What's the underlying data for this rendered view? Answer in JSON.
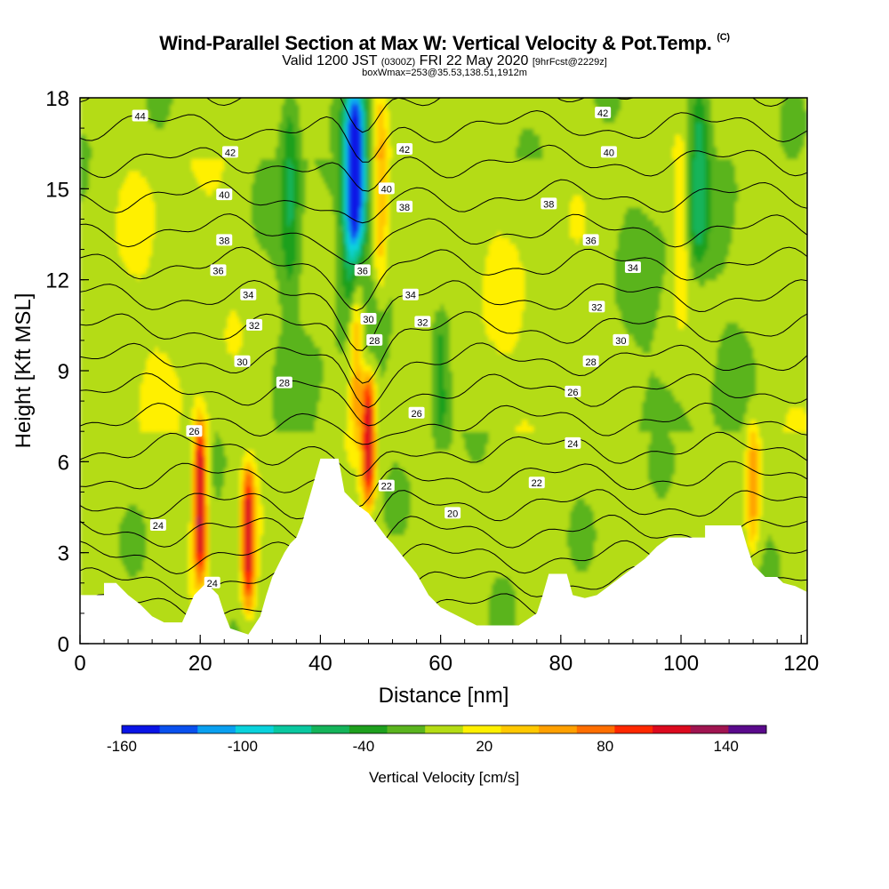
{
  "title": {
    "main": "Wind-Parallel Section at Max W: Vertical Velocity & Pot.Temp.",
    "copyright": "(C)",
    "valid_prefix": "Valid 1200 JST",
    "valid_utc": "(0300Z)",
    "valid_date": "FRI 22 May 2020",
    "forecast_tag": "[9hrFcst@2229z]",
    "box_info": "boxWmax=253@35.53,138.51,1912m"
  },
  "chart_data": {
    "type": "heatmap",
    "xlabel": "Distance [nm]",
    "ylabel": "Height [Kft MSL]",
    "xlim": [
      0,
      121
    ],
    "ylim": [
      0,
      18
    ],
    "x_ticks": [
      0,
      20,
      40,
      60,
      80,
      100,
      120
    ],
    "y_ticks": [
      0,
      3,
      6,
      9,
      12,
      15,
      18
    ],
    "colorbar": {
      "title": "Vertical Velocity [cm/s]",
      "tick_labels": [
        -160,
        -100,
        -40,
        20,
        80,
        140
      ],
      "levels": [
        -160,
        -140,
        -120,
        -100,
        -80,
        -60,
        -40,
        -20,
        0,
        20,
        40,
        60,
        80,
        100,
        120,
        140,
        160
      ],
      "colors": [
        "#0a14e6",
        "#0a50ee",
        "#0aa0f0",
        "#0ad2dc",
        "#0ac8a0",
        "#14b45a",
        "#1ea01e",
        "#5ab41e",
        "#b4dc14",
        "#fff000",
        "#ffc800",
        "#ffa000",
        "#ff6e00",
        "#ff2800",
        "#dc0a1e",
        "#a01450",
        "#5a0a8c"
      ]
    },
    "theta_contour_labels": [
      20,
      22,
      24,
      26,
      28,
      30,
      32,
      34,
      36,
      38,
      40,
      42,
      44
    ],
    "theta_labels_shown": [
      {
        "text": "44",
        "x": 10,
        "y": 17.4
      },
      {
        "text": "42",
        "x": 25,
        "y": 16.2
      },
      {
        "text": "40",
        "x": 24,
        "y": 14.8
      },
      {
        "text": "38",
        "x": 24,
        "y": 13.3
      },
      {
        "text": "36",
        "x": 23,
        "y": 12.3
      },
      {
        "text": "34",
        "x": 28,
        "y": 11.5
      },
      {
        "text": "32",
        "x": 29,
        "y": 10.5
      },
      {
        "text": "30",
        "x": 27,
        "y": 9.3
      },
      {
        "text": "28",
        "x": 34,
        "y": 8.6
      },
      {
        "text": "26",
        "x": 19,
        "y": 7.0
      },
      {
        "text": "24",
        "x": 13,
        "y": 3.9
      },
      {
        "text": "24",
        "x": 22,
        "y": 2.0
      },
      {
        "text": "42",
        "x": 54,
        "y": 16.3
      },
      {
        "text": "40",
        "x": 51,
        "y": 15.0
      },
      {
        "text": "38",
        "x": 54,
        "y": 14.4
      },
      {
        "text": "36",
        "x": 47,
        "y": 12.3
      },
      {
        "text": "34",
        "x": 55,
        "y": 11.5
      },
      {
        "text": "32",
        "x": 57,
        "y": 10.6
      },
      {
        "text": "30",
        "x": 48,
        "y": 10.7
      },
      {
        "text": "28",
        "x": 49,
        "y": 10.0
      },
      {
        "text": "26",
        "x": 56,
        "y": 7.6
      },
      {
        "text": "22",
        "x": 51,
        "y": 5.2
      },
      {
        "text": "20",
        "x": 62,
        "y": 4.3
      },
      {
        "text": "42",
        "x": 87,
        "y": 17.5
      },
      {
        "text": "40",
        "x": 88,
        "y": 16.2
      },
      {
        "text": "38",
        "x": 78,
        "y": 14.5
      },
      {
        "text": "36",
        "x": 85,
        "y": 13.3
      },
      {
        "text": "34",
        "x": 92,
        "y": 12.4
      },
      {
        "text": "32",
        "x": 86,
        "y": 11.1
      },
      {
        "text": "30",
        "x": 90,
        "y": 10.0
      },
      {
        "text": "28",
        "x": 85,
        "y": 9.3
      },
      {
        "text": "26",
        "x": 82,
        "y": 8.3
      },
      {
        "text": "24",
        "x": 82,
        "y": 6.6
      },
      {
        "text": "22",
        "x": 76,
        "y": 5.3
      }
    ],
    "terrain_height_kft": [
      {
        "x": 0,
        "y": 1.6
      },
      {
        "x": 4,
        "y": 1.6
      },
      {
        "x": 4,
        "y": 2.0
      },
      {
        "x": 6,
        "y": 2.0
      },
      {
        "x": 8,
        "y": 1.6
      },
      {
        "x": 10,
        "y": 1.3
      },
      {
        "x": 12,
        "y": 0.9
      },
      {
        "x": 14,
        "y": 0.7
      },
      {
        "x": 17,
        "y": 0.7
      },
      {
        "x": 19,
        "y": 1.6
      },
      {
        "x": 21,
        "y": 2.0
      },
      {
        "x": 23,
        "y": 1.6
      },
      {
        "x": 24,
        "y": 1.0
      },
      {
        "x": 25,
        "y": 0.5
      },
      {
        "x": 28,
        "y": 0.3
      },
      {
        "x": 30,
        "y": 0.9
      },
      {
        "x": 31,
        "y": 1.6
      },
      {
        "x": 32,
        "y": 2.2
      },
      {
        "x": 33,
        "y": 2.6
      },
      {
        "x": 34,
        "y": 3.0
      },
      {
        "x": 35,
        "y": 3.3
      },
      {
        "x": 36,
        "y": 3.5
      },
      {
        "x": 37,
        "y": 4.0
      },
      {
        "x": 38,
        "y": 4.7
      },
      {
        "x": 39,
        "y": 5.4
      },
      {
        "x": 40,
        "y": 6.1
      },
      {
        "x": 43,
        "y": 6.1
      },
      {
        "x": 44,
        "y": 5.0
      },
      {
        "x": 46,
        "y": 4.6
      },
      {
        "x": 48,
        "y": 4.3
      },
      {
        "x": 51,
        "y": 3.5
      },
      {
        "x": 52,
        "y": 3.3
      },
      {
        "x": 54,
        "y": 2.8
      },
      {
        "x": 56,
        "y": 2.3
      },
      {
        "x": 58,
        "y": 1.6
      },
      {
        "x": 60,
        "y": 1.2
      },
      {
        "x": 62,
        "y": 1.0
      },
      {
        "x": 64,
        "y": 0.8
      },
      {
        "x": 66,
        "y": 0.6
      },
      {
        "x": 73,
        "y": 0.6
      },
      {
        "x": 76,
        "y": 1.0
      },
      {
        "x": 77,
        "y": 1.6
      },
      {
        "x": 78,
        "y": 2.3
      },
      {
        "x": 81,
        "y": 2.3
      },
      {
        "x": 82,
        "y": 1.6
      },
      {
        "x": 84,
        "y": 1.5
      },
      {
        "x": 86,
        "y": 1.6
      },
      {
        "x": 88,
        "y": 1.9
      },
      {
        "x": 90,
        "y": 2.2
      },
      {
        "x": 92,
        "y": 2.5
      },
      {
        "x": 94,
        "y": 2.8
      },
      {
        "x": 96,
        "y": 3.2
      },
      {
        "x": 98,
        "y": 3.5
      },
      {
        "x": 104,
        "y": 3.5
      },
      {
        "x": 104,
        "y": 3.9
      },
      {
        "x": 110,
        "y": 3.9
      },
      {
        "x": 111,
        "y": 3.2
      },
      {
        "x": 112,
        "y": 2.6
      },
      {
        "x": 114,
        "y": 2.2
      },
      {
        "x": 116,
        "y": 2.2
      },
      {
        "x": 117,
        "y": 2.0
      },
      {
        "x": 119,
        "y": 1.9
      },
      {
        "x": 121,
        "y": 1.7
      }
    ],
    "velocity_features_cm_s": [
      {
        "kind": "updraft",
        "x": 20,
        "y_range": [
          2.5,
          7.0
        ],
        "peak": 150
      },
      {
        "kind": "updraft",
        "x": 28,
        "y_range": [
          1.5,
          5.5
        ],
        "peak": 130
      },
      {
        "kind": "updraft",
        "x": 48,
        "y_range": [
          5.0,
          8.5
        ],
        "peak": 140
      },
      {
        "kind": "updraft",
        "x": 46,
        "y_range": [
          7.0,
          11.5
        ],
        "peak": 70
      },
      {
        "kind": "downdraft",
        "x": 46,
        "y_range": [
          13.5,
          18.0
        ],
        "peak": -130
      },
      {
        "kind": "downdraft",
        "x": 45,
        "y_range": [
          11.5,
          18.0
        ],
        "peak": -50
      },
      {
        "kind": "updraft",
        "x": 50,
        "y_range": [
          12.0,
          18.0
        ],
        "peak": 60
      },
      {
        "kind": "downdraft",
        "x": 103,
        "y_range": [
          13.0,
          18.0
        ],
        "peak": -45
      },
      {
        "kind": "updraft",
        "x": 112,
        "y_range": [
          3.5,
          7.0
        ],
        "peak": 70
      },
      {
        "kind": "updraft",
        "x": 100,
        "y_range": [
          11.0,
          16.0
        ],
        "peak": 45
      },
      {
        "kind": "downdraft",
        "x": 35,
        "y_range": [
          12.0,
          18.0
        ],
        "peak": -35
      },
      {
        "kind": "downdraft",
        "x": 60,
        "y_range": [
          7.0,
          10.5
        ],
        "peak": -35
      }
    ]
  }
}
